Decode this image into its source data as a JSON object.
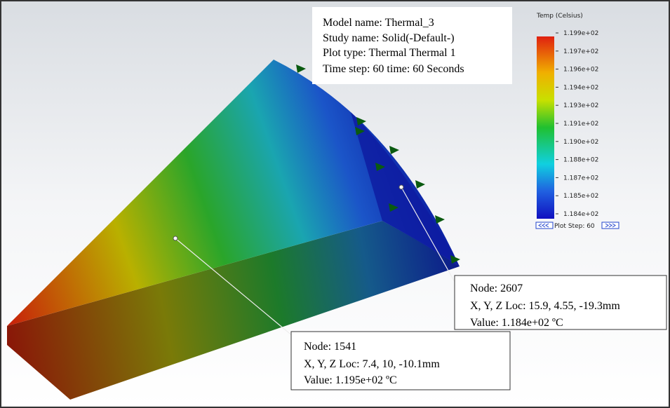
{
  "info": {
    "lines": [
      "Model name: Thermal_3",
      "Study name: Solid(-Default-)",
      "Plot type: Thermal Thermal 1",
      "Time step: 60   time: 60 Seconds"
    ]
  },
  "legend": {
    "title": "Temp (Celsius)",
    "labels": [
      "1.199e+02",
      "1.197e+02",
      "1.196e+02",
      "1.194e+02",
      "1.193e+02",
      "1.191e+02",
      "1.190e+02",
      "1.188e+02",
      "1.187e+02",
      "1.185e+02",
      "1.184e+02"
    ],
    "plot_step": "Plot Step: 60"
  },
  "probes": [
    {
      "lines": [
        "Node: 2607",
        "X, Y, Z Loc:  15.9, 4.55, -19.3mm",
        "Value: 1.184e+02 ºC"
      ]
    },
    {
      "lines": [
        "Node: 1541",
        "X, Y, Z Loc:  7.4, 10, -10.1mm",
        "Value: 1.195e+02 ºC"
      ]
    }
  ]
}
